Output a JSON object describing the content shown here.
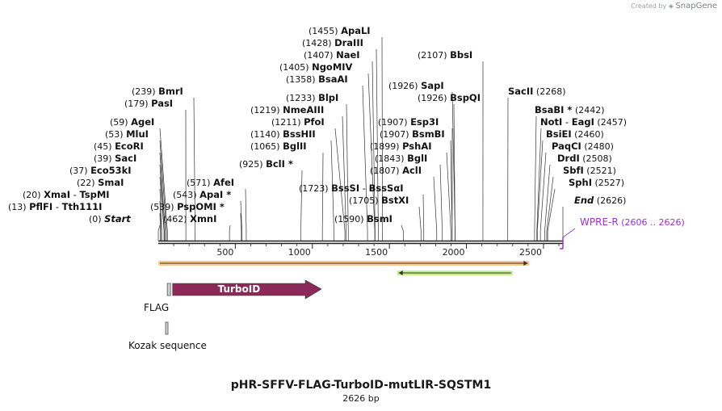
{
  "credit": {
    "prefix": "Created by",
    "brand": "SnapGene",
    "logo_icon": "snapgene-logo-icon"
  },
  "title": "pHR-SFFV-FLAG-TurboID-mutLIR-SQSTM1",
  "length_label": "2626 bp",
  "sequence_length": 2626,
  "ruler_ticks": [
    {
      "value": 500,
      "label": "500"
    },
    {
      "value": 1000,
      "label": "1000"
    },
    {
      "value": 1500,
      "label": "1500"
    },
    {
      "value": 2000,
      "label": "2000"
    },
    {
      "value": 2500,
      "label": "2500"
    }
  ],
  "sites": [
    {
      "pos": 0,
      "pos_label": "(0)",
      "name": "Start",
      "italic": true
    },
    {
      "pos": 13,
      "pos_label": "(13)",
      "name": "PflFI",
      "name2": "Tth111I"
    },
    {
      "pos": 20,
      "pos_label": "(20)",
      "name": "XmaI",
      "name2": "TspMI"
    },
    {
      "pos": 22,
      "pos_label": "(22)",
      "name": "SmaI"
    },
    {
      "pos": 37,
      "pos_label": "(37)",
      "name": "Eco53kI"
    },
    {
      "pos": 39,
      "pos_label": "(39)",
      "name": "SacI"
    },
    {
      "pos": 45,
      "pos_label": "(45)",
      "name": "EcoRI"
    },
    {
      "pos": 53,
      "pos_label": "(53)",
      "name": "MluI"
    },
    {
      "pos": 59,
      "pos_label": "(59)",
      "name": "AgeI"
    },
    {
      "pos": 179,
      "pos_label": "(179)",
      "name": "PasI"
    },
    {
      "pos": 239,
      "pos_label": "(239)",
      "name": "BmrI"
    },
    {
      "pos": 462,
      "pos_label": "(462)",
      "name": "XmnI"
    },
    {
      "pos": 539,
      "pos_label": "(539)",
      "name": "PspOMI",
      "star": true
    },
    {
      "pos": 543,
      "pos_label": "(543)",
      "name": "ApaI",
      "star": true
    },
    {
      "pos": 571,
      "pos_label": "(571)",
      "name": "AfeI"
    },
    {
      "pos": 925,
      "pos_label": "(925)",
      "name": "BclI",
      "star": true
    },
    {
      "pos": 1065,
      "pos_label": "(1065)",
      "name": "BglII"
    },
    {
      "pos": 1140,
      "pos_label": "(1140)",
      "name": "BssHII"
    },
    {
      "pos": 1211,
      "pos_label": "(1211)",
      "name": "PfoI"
    },
    {
      "pos": 1219,
      "pos_label": "(1219)",
      "name": "NmeAIII"
    },
    {
      "pos": 1233,
      "pos_label": "(1233)",
      "name": "BlpI"
    },
    {
      "pos": 1358,
      "pos_label": "(1358)",
      "name": "BsaAI"
    },
    {
      "pos": 1405,
      "pos_label": "(1405)",
      "name": "NgoMIV"
    },
    {
      "pos": 1407,
      "pos_label": "(1407)",
      "name": "NaeI"
    },
    {
      "pos": 1428,
      "pos_label": "(1428)",
      "name": "DraIII"
    },
    {
      "pos": 1455,
      "pos_label": "(1455)",
      "name": "ApaLI"
    },
    {
      "pos": 1590,
      "pos_label": "(1590)",
      "name": "BsmI"
    },
    {
      "pos": 1705,
      "pos_label": "(1705)",
      "name": "BstXI"
    },
    {
      "pos": 1723,
      "pos_label": "(1723)",
      "name": "BssSI",
      "name2": "BssSαI"
    },
    {
      "pos": 1807,
      "pos_label": "(1807)",
      "name": "AclI"
    },
    {
      "pos": 1843,
      "pos_label": "(1843)",
      "name": "BglI"
    },
    {
      "pos": 1899,
      "pos_label": "(1899)",
      "name": "PshAI"
    },
    {
      "pos": 1907,
      "pos_label": "(1907)",
      "name": "BsmBI"
    },
    {
      "pos": 1907,
      "pos_label": "(1907)",
      "name": "Esp3I"
    },
    {
      "pos": 1926,
      "pos_label": "(1926)",
      "name": "BspQI"
    },
    {
      "pos": 1926,
      "pos_label": "(1926)",
      "name": "SapI"
    },
    {
      "pos": 2107,
      "pos_label": "(2107)",
      "name": "BbsI"
    },
    {
      "pos": 2268,
      "pos_label": "(2268)",
      "name": "SacII"
    },
    {
      "pos": 2442,
      "pos_label": "(2442)",
      "name": "BsaBI",
      "star": true
    },
    {
      "pos": 2457,
      "pos_label": "(2457)",
      "name": "NotI",
      "name2": "EagI"
    },
    {
      "pos": 2460,
      "pos_label": "(2460)",
      "name": "BsiEI"
    },
    {
      "pos": 2480,
      "pos_label": "(2480)",
      "name": "PaqCI"
    },
    {
      "pos": 2508,
      "pos_label": "(2508)",
      "name": "DrdI"
    },
    {
      "pos": 2521,
      "pos_label": "(2521)",
      "name": "SbfI"
    },
    {
      "pos": 2527,
      "pos_label": "(2527)",
      "name": "SphI"
    },
    {
      "pos": 2626,
      "pos_label": "(2626)",
      "name": "End",
      "italic": true
    }
  ],
  "primer": {
    "name": "WPRE-R",
    "range_label": "(2606 .. 2626)",
    "start": 2606,
    "end": 2626,
    "color": "#9b30d0"
  },
  "features_bars": [
    {
      "name": "orange-feature-bar",
      "start": 0,
      "end": 2408,
      "color": "#f7c98b",
      "arrow": "right"
    },
    {
      "name": "green-feature-bar",
      "start": 1550,
      "end": 2300,
      "color": "#c6f08a",
      "arrow": "left"
    }
  ],
  "features": [
    {
      "name": "TurboID",
      "start": 93,
      "end": 1059,
      "color": "#8b2a59",
      "label_color": "#ffffff"
    },
    {
      "name": "FLAG",
      "start": 69,
      "end": 93,
      "color": "#d0d0d0"
    },
    {
      "name": "Kozak sequence",
      "start": 63,
      "end": 72,
      "color": "#d0d0d0"
    }
  ]
}
